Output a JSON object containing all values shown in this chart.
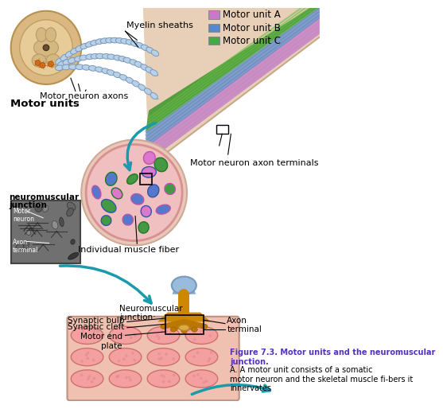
{
  "background_color": "#ffffff",
  "legend_items": [
    {
      "label": "Motor unit A",
      "color": "#cc77cc"
    },
    {
      "label": "Motor unit B",
      "color": "#5588cc"
    },
    {
      "label": "Motor unit C",
      "color": "#44aa44"
    }
  ],
  "labels": {
    "myelin_sheaths": "Myelin sheaths",
    "motor_neuron_axons": "Motor neuron axons",
    "motor_units": "Motor units",
    "motor_neuron_axon_terminals": "Motor neuron axon terminals",
    "individual_muscle_fiber": "Individual muscle fiber",
    "motor_neuron": "Motor\nneuron",
    "axon_terminal_small": "Axon\nterminal",
    "neuromuscular_label_left": "neuromuscular\njunction",
    "neuromuscular_junction": "Neuromuscular\njunction:",
    "synaptic_bulb": "Synaptic bulb",
    "synaptic_cleft": "Synaptic cleft",
    "motor_end_plate": "Motor end\nplate",
    "axon_terminal": "Axon\nterminal",
    "figure_bold": "Figure 7.3. Motor units and the neuromuscular\njunction.",
    "figure_normal": "A. A motor unit consists of a somatic\nmotor neuron and the skeletal muscle fi­bers it\ninnervates"
  },
  "colors": {
    "spinal_outer": "#dbb882",
    "spinal_inner": "#c9a870",
    "neuron_orange": "#e07820",
    "arrow_teal": "#1a9aaa",
    "myelin_bead_fill": "#aac8e8",
    "myelin_bead_edge": "#7099bb",
    "muscle_purple": "#bb88bb",
    "muscle_blue": "#6688bb",
    "muscle_green": "#448833",
    "muscle_stripe_light": "#ccddee",
    "cross_bg": "#f0c8c8",
    "cross_edge": "#d09090",
    "fiber_pink": "#dd88bb",
    "fiber_blue": "#5577cc",
    "fiber_green": "#449944",
    "axon_orange": "#cc8800",
    "axon_cap_blue": "#88aacc",
    "muscle_tissue": "#f0c0b0",
    "muscle_fiber_fill": "#f5a0a0",
    "muscle_fiber_edge": "#cc7070",
    "figure_caption_color": "#5533bb"
  }
}
